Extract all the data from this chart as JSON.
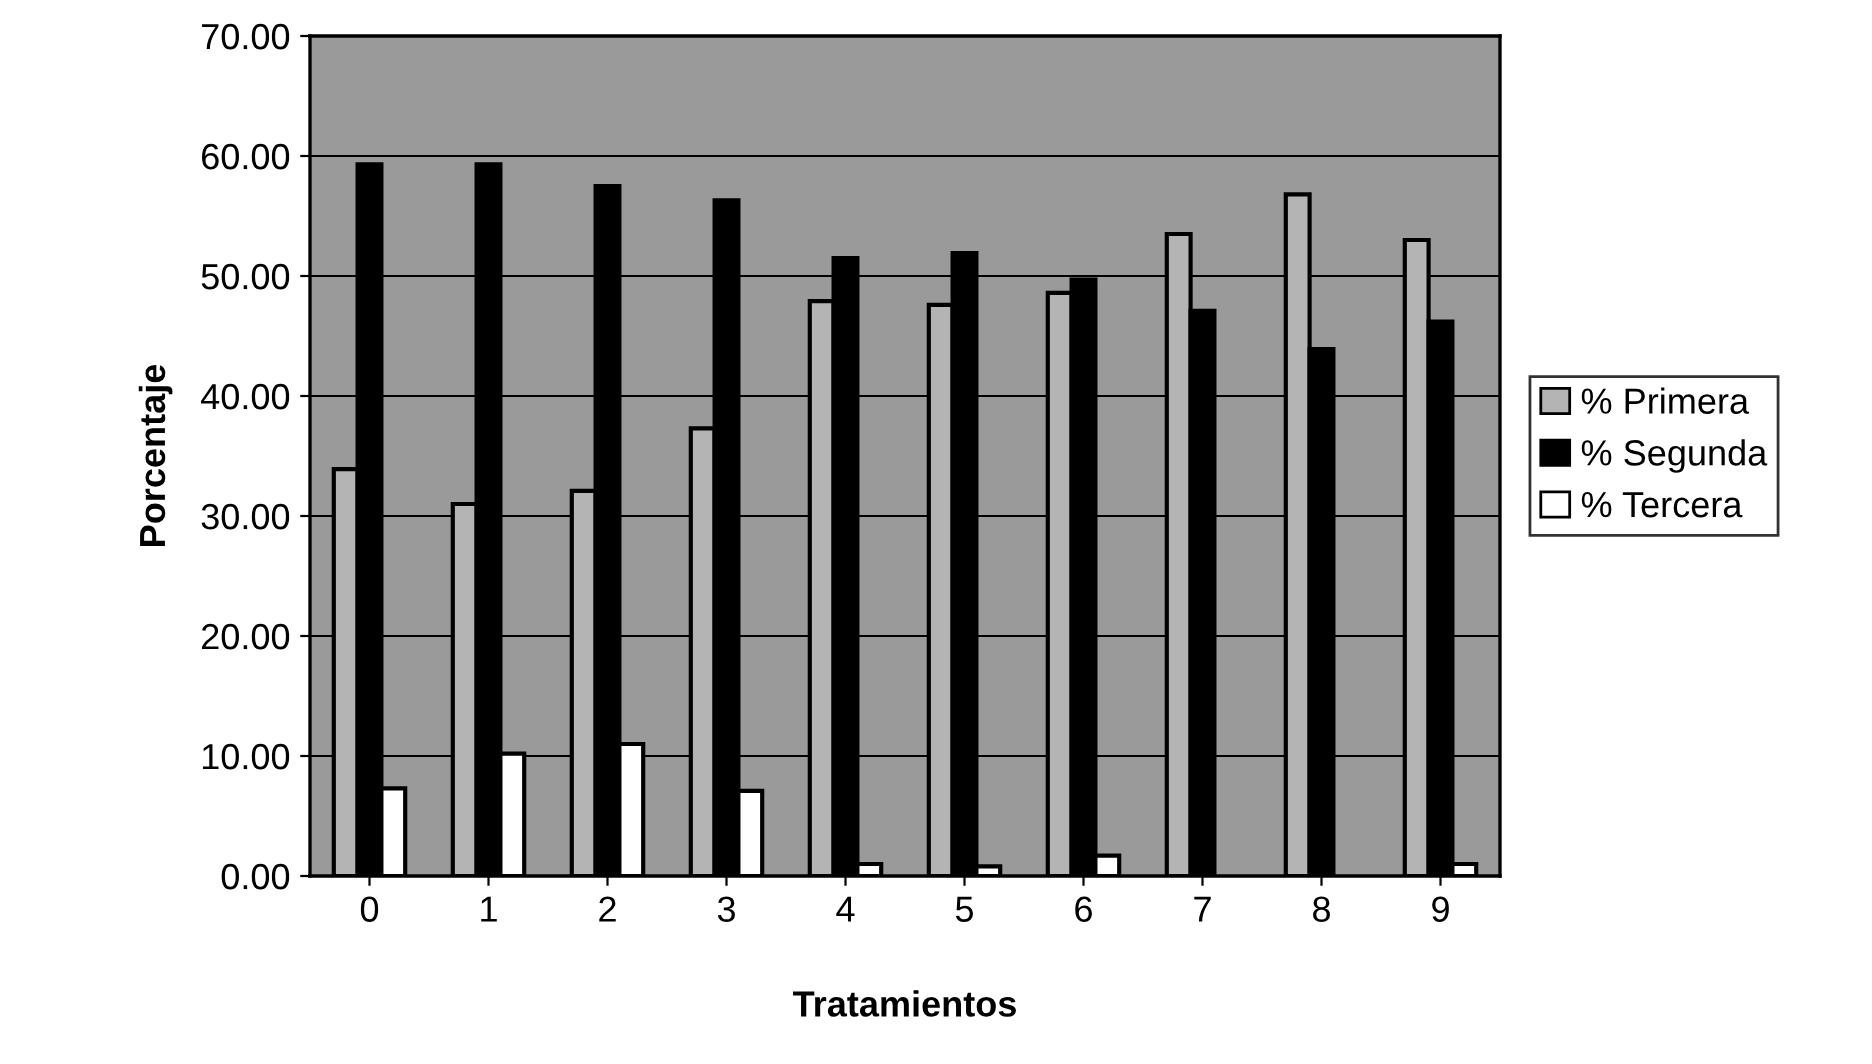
{
  "chart_data": {
    "type": "bar",
    "xlabel": "Tratamientos",
    "ylabel": "Porcentaje",
    "categories": [
      "0",
      "1",
      "2",
      "3",
      "4",
      "5",
      "6",
      "7",
      "8",
      "9"
    ],
    "series": [
      {
        "name": "% Primera",
        "color": "#b4b4b4",
        "values": [
          33.9,
          31.0,
          32.1,
          37.3,
          47.9,
          47.6,
          48.6,
          53.5,
          56.8,
          53.0
        ]
      },
      {
        "name": "% Segunda",
        "color": "#000000",
        "values": [
          59.3,
          59.3,
          57.5,
          56.3,
          51.5,
          51.9,
          49.7,
          47.1,
          43.9,
          46.2
        ]
      },
      {
        "name": "% Tercera",
        "color": "#ffffff",
        "values": [
          7.3,
          10.2,
          11.0,
          7.1,
          1.0,
          0.8,
          1.7,
          null,
          null,
          1.0
        ]
      }
    ],
    "ylim": [
      0,
      70
    ],
    "yticks": [
      {
        "value": 0,
        "label": "0.00"
      },
      {
        "value": 10,
        "label": "10.00"
      },
      {
        "value": 20,
        "label": "20.00"
      },
      {
        "value": 30,
        "label": "30.00"
      },
      {
        "value": 40,
        "label": "40.00"
      },
      {
        "value": 50,
        "label": "50.00"
      },
      {
        "value": 60,
        "label": "60.00"
      },
      {
        "value": 70,
        "label": "70.00"
      }
    ],
    "grid": "y",
    "legend": "right"
  }
}
